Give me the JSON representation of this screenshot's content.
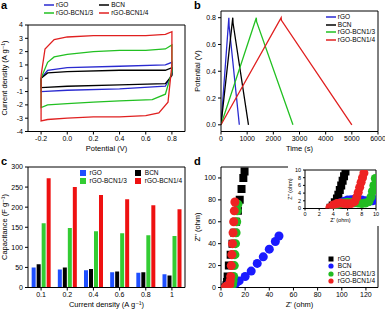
{
  "chart_data": [
    {
      "title": "a",
      "type": "line",
      "x_label": "Potential (V)",
      "y_label": "Current density (A g⁻¹)",
      "xlim": [
        -0.3,
        0.9
      ],
      "xticks": [
        -0.2,
        {
          "value": 0,
          "label": "0.0"
        },
        0.2,
        0.4,
        0.6,
        0.8
      ],
      "ylim": [
        -4,
        4
      ],
      "yticks": [
        -4,
        -3,
        -2,
        -1,
        0,
        1,
        2,
        3,
        4
      ],
      "legend": "top",
      "series": [
        {
          "name": "rGO",
          "color": "#2a2ad0",
          "x": [
            -0.2,
            -0.15,
            0.0,
            0.4,
            0.75,
            0.8,
            0.8,
            0.75,
            0.4,
            0.0,
            -0.2,
            -0.2
          ],
          "values": [
            0.0,
            0.6,
            0.8,
            0.9,
            1.0,
            1.2,
            0.3,
            -0.6,
            -0.8,
            -0.9,
            -1.0,
            0.0
          ]
        },
        {
          "name": "BCN",
          "color": "#000000",
          "x": [
            -0.2,
            -0.15,
            0.0,
            0.4,
            0.75,
            0.8,
            0.8,
            0.75,
            0.4,
            0.0,
            -0.2,
            -0.2
          ],
          "values": [
            0.0,
            0.4,
            0.5,
            0.6,
            0.6,
            0.8,
            0.2,
            -0.4,
            -0.5,
            -0.6,
            -0.7,
            0.0
          ]
        },
        {
          "name": "rGO-BCN1/3",
          "color": "#22c022",
          "x": [
            -0.2,
            -0.15,
            -0.1,
            0.0,
            0.2,
            0.4,
            0.6,
            0.75,
            0.8,
            0.8,
            0.75,
            0.65,
            0.4,
            0.2,
            0.0,
            -0.15,
            -0.2,
            -0.2
          ],
          "values": [
            0.0,
            1.2,
            1.6,
            1.8,
            2.0,
            2.1,
            2.1,
            2.2,
            2.5,
            0.5,
            -1.2,
            -1.6,
            -1.7,
            -1.8,
            -1.9,
            -2.0,
            -2.2,
            0.0
          ]
        },
        {
          "name": "rGO-BCN1/4",
          "color": "#e02020",
          "x": [
            -0.2,
            -0.17,
            -0.1,
            0.0,
            0.2,
            0.4,
            0.6,
            0.75,
            0.8,
            0.8,
            0.77,
            0.7,
            0.6,
            0.4,
            0.2,
            0.0,
            -0.15,
            -0.2,
            -0.2
          ],
          "values": [
            0.2,
            2.2,
            2.9,
            3.1,
            3.2,
            3.2,
            3.2,
            3.3,
            3.5,
            1.0,
            -1.8,
            -2.6,
            -2.8,
            -2.9,
            -2.9,
            -3.0,
            -3.1,
            -3.2,
            0.2
          ]
        }
      ]
    },
    {
      "title": "b",
      "type": "line",
      "x_label": "Time (s)",
      "y_label": "Potential (V)",
      "xlim": [
        0,
        6000
      ],
      "xticks": [
        0,
        1000,
        2000,
        3000,
        4000,
        5000,
        6000
      ],
      "ylim": [
        -0.05,
        0.85
      ],
      "yticks": [
        {
          "value": 0,
          "label": "0.0"
        },
        0.2,
        0.4,
        0.6,
        0.8
      ],
      "legend": "upper right",
      "series": [
        {
          "name": "rGO",
          "color": "#2a2ad0",
          "x": [
            0,
            300,
            310,
            700
          ],
          "values": [
            0,
            0.8,
            0.74,
            0
          ]
        },
        {
          "name": "BCN",
          "color": "#000000",
          "x": [
            0,
            450,
            460,
            1050
          ],
          "values": [
            0,
            0.8,
            0.76,
            0
          ]
        },
        {
          "name": "rGO-BCN1/3",
          "color": "#22c022",
          "x": [
            0,
            1350,
            1360,
            2750
          ],
          "values": [
            0,
            0.8,
            0.77,
            0
          ]
        },
        {
          "name": "rGO-BCN1/4",
          "color": "#e02020",
          "x": [
            0,
            2300,
            2310,
            5000
          ],
          "values": [
            0,
            0.8,
            0.78,
            0
          ]
        }
      ]
    },
    {
      "title": "c",
      "type": "bar",
      "x_label": "Current density (A g⁻¹)",
      "y_label": "Capacitance (F g⁻¹)",
      "categories": [
        "0.1",
        "0.2",
        "0.4",
        "0.6",
        "0.8",
        "1"
      ],
      "ylim": [
        0,
        300
      ],
      "yticks": [
        0,
        50,
        100,
        150,
        200,
        250,
        300
      ],
      "legend": "upper right",
      "series": [
        {
          "name": "rGO",
          "color": "#1f4fff",
          "values": [
            50,
            45,
            43,
            38,
            37,
            33
          ]
        },
        {
          "name": "BCN",
          "color": "#000000",
          "values": [
            58,
            50,
            46,
            40,
            38,
            30
          ]
        },
        {
          "name": "rGO-BCN1/3",
          "color": "#33cc33",
          "values": [
            160,
            148,
            140,
            135,
            130,
            128
          ]
        },
        {
          "name": "rGO-BCN1/4",
          "color": "#ee1111",
          "values": [
            272,
            250,
            230,
            220,
            205,
            195
          ]
        }
      ]
    },
    {
      "title": "d",
      "type": "scatter",
      "x_label": "Z' (ohm)",
      "y_label": "Z'' (ohm)",
      "xlim": [
        0,
        130
      ],
      "xticks": [
        0,
        20,
        40,
        60,
        80,
        100,
        120
      ],
      "ylim": [
        0,
        110
      ],
      "yticks": [
        0,
        20,
        40,
        60,
        80,
        100
      ],
      "legend": "lower right",
      "series": [
        {
          "name": "rGO",
          "color": "#000000",
          "marker": "square",
          "x": [
            3.5,
            4.5,
            5,
            5.5,
            6.5,
            8,
            9.5,
            11,
            12.5,
            14,
            15.5,
            17,
            18.5,
            19.5
          ],
          "values": [
            0,
            2,
            5,
            10,
            20,
            30,
            40,
            50,
            60,
            70,
            80,
            90,
            100,
            106
          ]
        },
        {
          "name": "BCN",
          "color": "#1a1aff",
          "marker": "circle",
          "x": [
            4,
            5,
            6,
            7,
            8,
            9,
            10,
            12,
            15,
            20,
            25,
            30,
            35,
            40,
            45,
            48
          ],
          "values": [
            0,
            1.5,
            2.2,
            2.4,
            2.2,
            1.8,
            2.2,
            3.5,
            6,
            10,
            15,
            22,
            28,
            35,
            42,
            47
          ]
        },
        {
          "name": "rGO-BCN1/3",
          "color": "#22bb22",
          "marker": "circle",
          "x": [
            4,
            5,
            6,
            7,
            8,
            9,
            9.5,
            10,
            10.5,
            11,
            11.5,
            12,
            12.5,
            13,
            13.5,
            14
          ],
          "values": [
            0,
            1,
            1.5,
            1.4,
            1.2,
            1.5,
            3,
            6,
            10,
            20,
            30,
            40,
            50,
            60,
            70,
            76
          ]
        },
        {
          "name": "rGO-BCN1/4",
          "color": "#ee2222",
          "marker": "circle",
          "x": [
            3.5,
            4,
            5,
            6,
            6.8,
            7.2,
            7.6,
            8,
            8.5,
            9,
            9.5,
            10,
            10.5,
            11,
            11.5
          ],
          "values": [
            0,
            0.8,
            1.3,
            1,
            1.5,
            3,
            6,
            10,
            20,
            30,
            40,
            50,
            60,
            70,
            78
          ]
        }
      ]
    },
    {
      "type": "scatter",
      "x_label": "Z' (ohm)",
      "y_label": "Z'' (ohm)",
      "xlim": [
        0,
        10
      ],
      "xticks": [
        0,
        2,
        4,
        6,
        8,
        10
      ],
      "ylim": [
        0,
        10
      ],
      "yticks": [
        0,
        2,
        4,
        6,
        8,
        10
      ],
      "series": [
        {
          "name": "rGO",
          "color": "#000000",
          "marker": "square",
          "x": [
            3.6,
            3.9,
            4.2,
            4.5,
            4.7,
            4.9,
            5.1,
            5.3,
            5.5,
            5.7
          ],
          "values": [
            0.2,
            0.8,
            1.6,
            2.6,
            3.6,
            4.8,
            6,
            7.2,
            8.4,
            9.6
          ]
        },
        {
          "name": "BCN",
          "color": "#1a1aff",
          "marker": "circle",
          "x": [
            4,
            4.5,
            5,
            5.5,
            6,
            6.5,
            7,
            7.5,
            8,
            8.5,
            9,
            9.5,
            10
          ],
          "values": [
            0.2,
            1,
            1.5,
            1.9,
            2.2,
            2.3,
            2.4,
            2.3,
            2.2,
            2,
            1.9,
            2,
            2.2
          ]
        },
        {
          "name": "rGO-BCN1/3",
          "color": "#22bb22",
          "marker": "circle",
          "x": [
            4,
            4.5,
            5,
            5.5,
            6,
            6.5,
            7,
            7.5,
            8,
            8.5,
            9,
            9.3,
            9.5,
            9.7,
            9.9
          ],
          "values": [
            0.2,
            0.8,
            1.2,
            1.5,
            1.6,
            1.6,
            1.5,
            1.4,
            1.3,
            1.4,
            1.8,
            3,
            4.5,
            6,
            7.8
          ]
        },
        {
          "name": "rGO-BCN1/4",
          "color": "#ee2222",
          "marker": "circle",
          "x": [
            3.5,
            4,
            4.5,
            5,
            5.5,
            6,
            6.5,
            7,
            7.3,
            7.5,
            7.7,
            7.9,
            8.1,
            8.3
          ],
          "values": [
            0.2,
            0.9,
            1.3,
            1.4,
            1.3,
            1.2,
            1.3,
            1.8,
            3,
            4.2,
            5.5,
            6.8,
            8,
            9.2
          ]
        }
      ]
    }
  ]
}
